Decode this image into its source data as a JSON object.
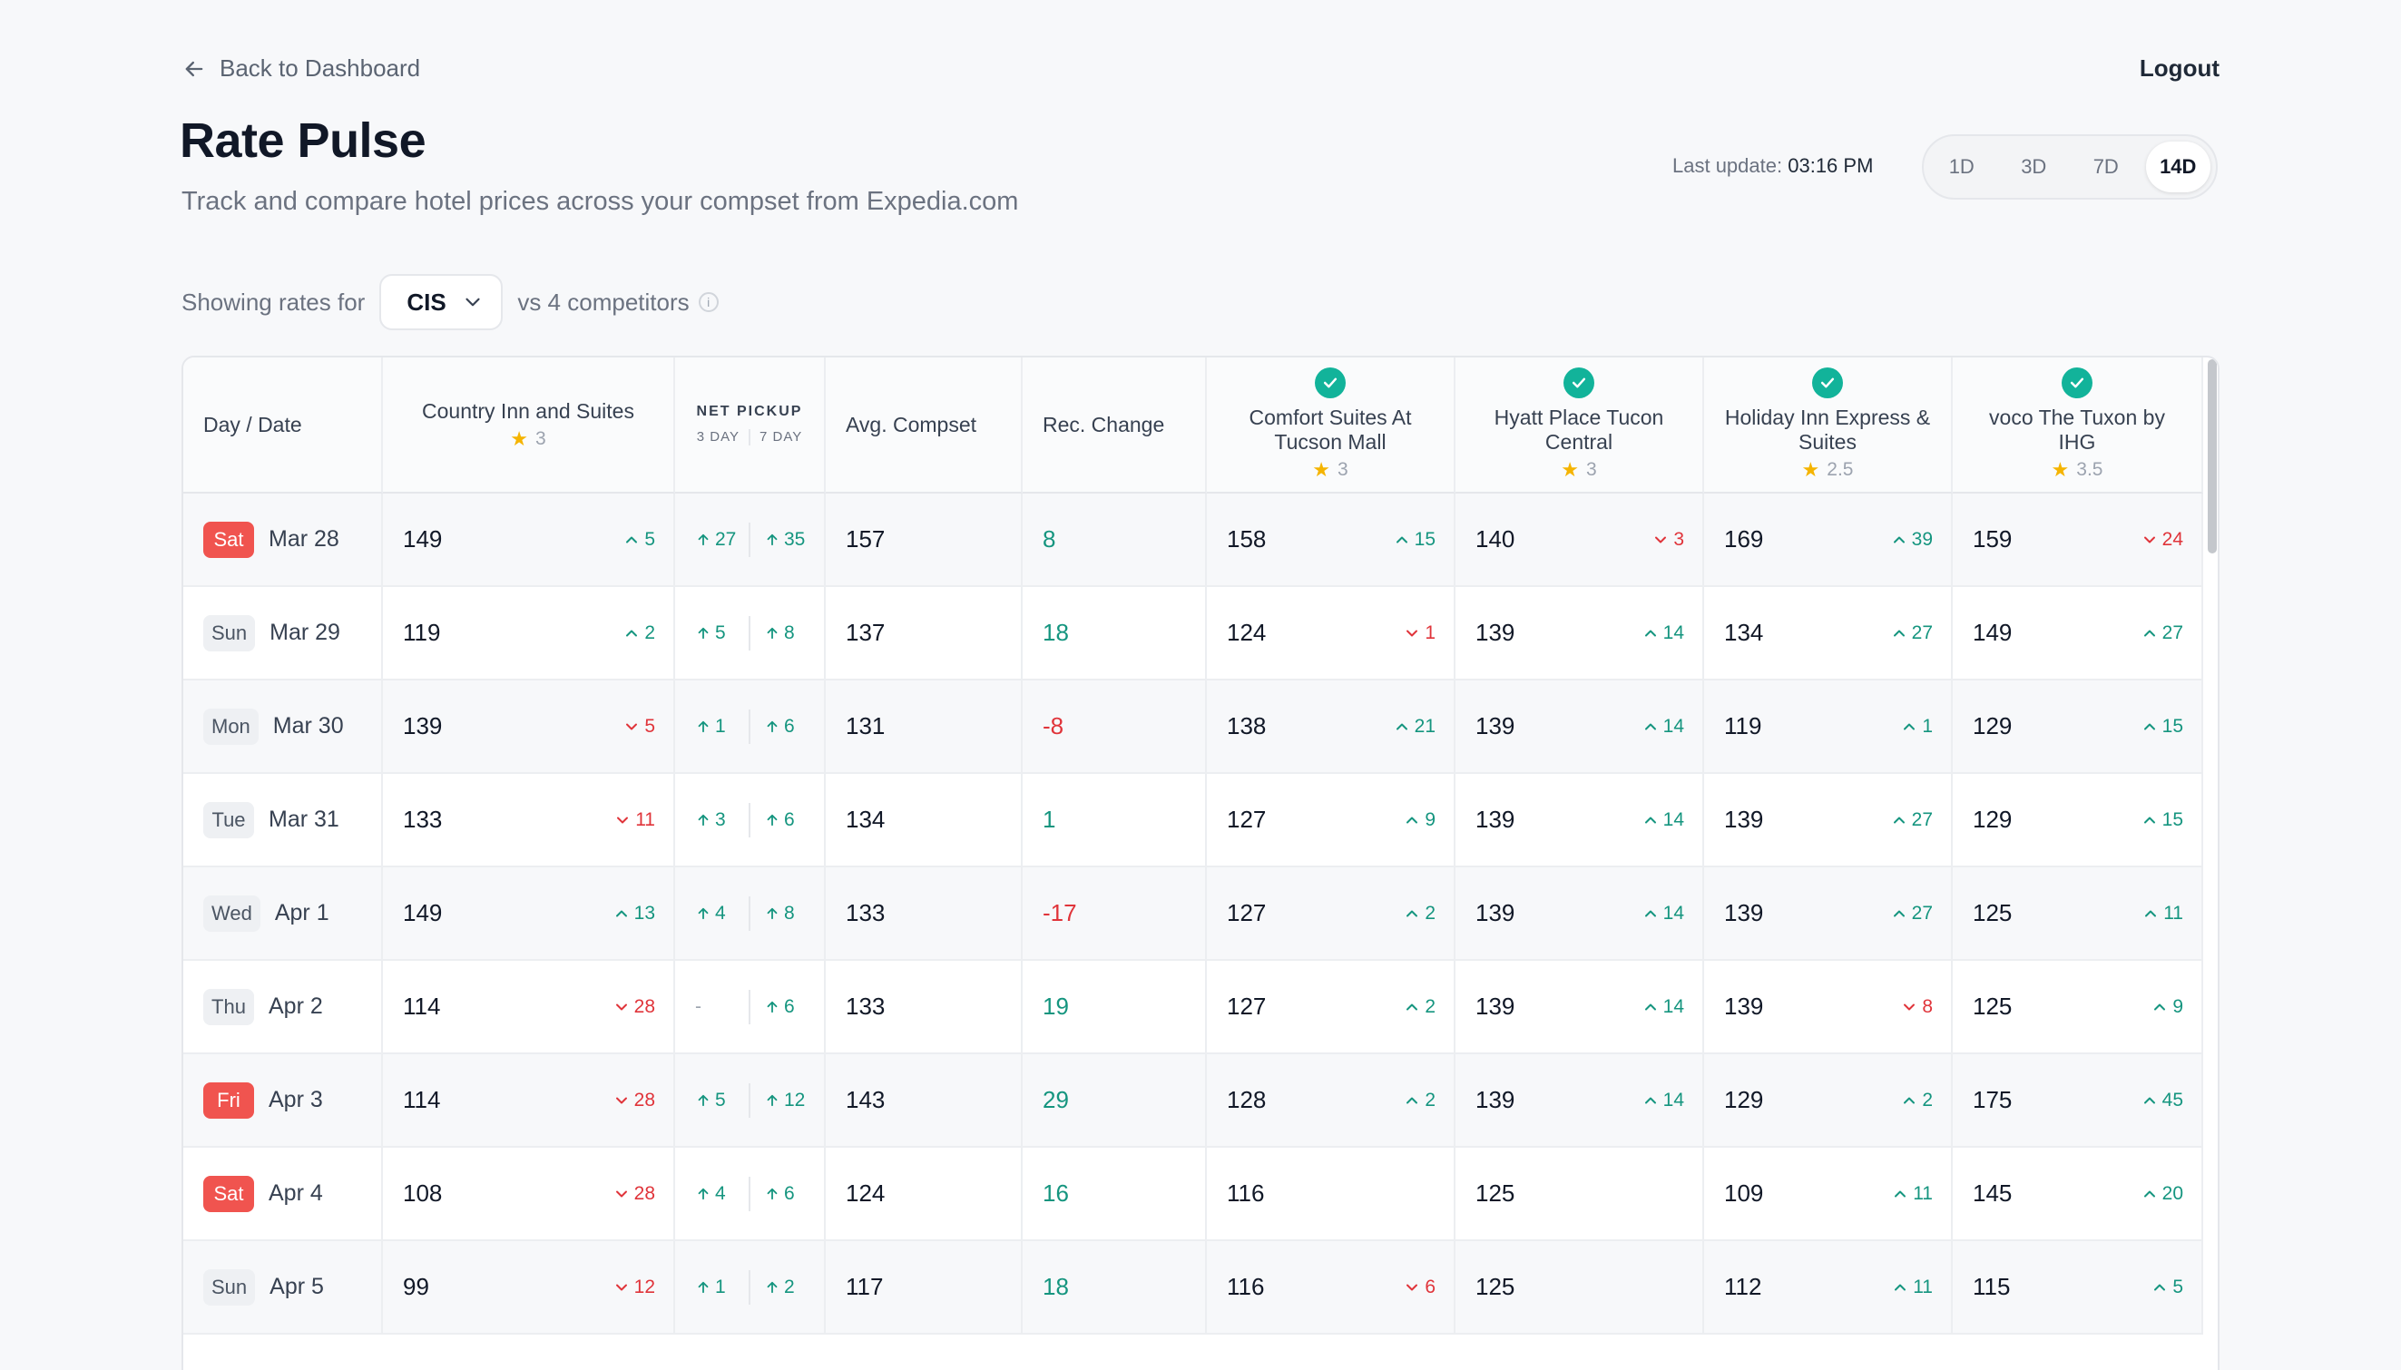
{
  "nav": {
    "back_label": "Back to Dashboard",
    "logout_label": "Logout"
  },
  "header": {
    "title": "Rate Pulse",
    "subtitle": "Track and compare hotel prices across your compset from Expedia.com",
    "last_update_label": "Last update:",
    "last_update_time": "03:16 PM",
    "ranges": [
      "1D",
      "3D",
      "7D",
      "14D"
    ],
    "active_range": "14D"
  },
  "filter": {
    "prefix": "Showing rates for",
    "selected": "CIS",
    "suffix": "vs 4 competitors",
    "info_glyph": "i"
  },
  "columns": {
    "day_date": "Day / Date",
    "own_hotel": {
      "name": "Country Inn and Suites",
      "rating": "3"
    },
    "net_pickup": {
      "title": "NET PICKUP",
      "sub_a": "3 DAY",
      "sub_b": "7 DAY"
    },
    "avg_compset": "Avg. Compset",
    "rec_change": "Rec. Change",
    "competitors": [
      {
        "name": "Comfort Suites At Tucson Mall",
        "rating": "3"
      },
      {
        "name": "Hyatt Place Tucon Central",
        "rating": "3"
      },
      {
        "name": "Holiday Inn Express & Suites",
        "rating": "2.5"
      },
      {
        "name": "voco The Tuxon by IHG",
        "rating": "3.5"
      }
    ]
  },
  "rows": [
    {
      "day": "Sat",
      "date": "Mar 28",
      "weekend": true,
      "own": {
        "v": "149",
        "d": "5",
        "dir": "up"
      },
      "p3": "27",
      "p7": "35",
      "avg": "157",
      "rec": "8",
      "rec_dir": "up",
      "comp": [
        {
          "v": "158",
          "d": "15",
          "dir": "up"
        },
        {
          "v": "140",
          "d": "3",
          "dir": "down"
        },
        {
          "v": "169",
          "d": "39",
          "dir": "up"
        },
        {
          "v": "159",
          "d": "24",
          "dir": "down"
        }
      ]
    },
    {
      "day": "Sun",
      "date": "Mar 29",
      "weekend": false,
      "own": {
        "v": "119",
        "d": "2",
        "dir": "up"
      },
      "p3": "5",
      "p7": "8",
      "avg": "137",
      "rec": "18",
      "rec_dir": "up",
      "comp": [
        {
          "v": "124",
          "d": "1",
          "dir": "down"
        },
        {
          "v": "139",
          "d": "14",
          "dir": "up"
        },
        {
          "v": "134",
          "d": "27",
          "dir": "up"
        },
        {
          "v": "149",
          "d": "27",
          "dir": "up"
        }
      ]
    },
    {
      "day": "Mon",
      "date": "Mar 30",
      "weekend": false,
      "own": {
        "v": "139",
        "d": "5",
        "dir": "down"
      },
      "p3": "1",
      "p7": "6",
      "avg": "131",
      "rec": "-8",
      "rec_dir": "down",
      "comp": [
        {
          "v": "138",
          "d": "21",
          "dir": "up"
        },
        {
          "v": "139",
          "d": "14",
          "dir": "up"
        },
        {
          "v": "119",
          "d": "1",
          "dir": "up"
        },
        {
          "v": "129",
          "d": "15",
          "dir": "up"
        }
      ]
    },
    {
      "day": "Tue",
      "date": "Mar 31",
      "weekend": false,
      "own": {
        "v": "133",
        "d": "11",
        "dir": "down"
      },
      "p3": "3",
      "p7": "6",
      "avg": "134",
      "rec": "1",
      "rec_dir": "up",
      "comp": [
        {
          "v": "127",
          "d": "9",
          "dir": "up"
        },
        {
          "v": "139",
          "d": "14",
          "dir": "up"
        },
        {
          "v": "139",
          "d": "27",
          "dir": "up"
        },
        {
          "v": "129",
          "d": "15",
          "dir": "up"
        }
      ]
    },
    {
      "day": "Wed",
      "date": "Apr 1",
      "weekend": false,
      "own": {
        "v": "149",
        "d": "13",
        "dir": "up"
      },
      "p3": "4",
      "p7": "8",
      "avg": "133",
      "rec": "-17",
      "rec_dir": "down",
      "comp": [
        {
          "v": "127",
          "d": "2",
          "dir": "up"
        },
        {
          "v": "139",
          "d": "14",
          "dir": "up"
        },
        {
          "v": "139",
          "d": "27",
          "dir": "up"
        },
        {
          "v": "125",
          "d": "11",
          "dir": "up"
        }
      ]
    },
    {
      "day": "Thu",
      "date": "Apr 2",
      "weekend": false,
      "own": {
        "v": "114",
        "d": "28",
        "dir": "down"
      },
      "p3": "-",
      "p7": "6",
      "avg": "133",
      "rec": "19",
      "rec_dir": "up",
      "comp": [
        {
          "v": "127",
          "d": "2",
          "dir": "up"
        },
        {
          "v": "139",
          "d": "14",
          "dir": "up"
        },
        {
          "v": "139",
          "d": "8",
          "dir": "down"
        },
        {
          "v": "125",
          "d": "9",
          "dir": "up"
        }
      ]
    },
    {
      "day": "Fri",
      "date": "Apr 3",
      "weekend": true,
      "own": {
        "v": "114",
        "d": "28",
        "dir": "down"
      },
      "p3": "5",
      "p7": "12",
      "avg": "143",
      "rec": "29",
      "rec_dir": "up",
      "comp": [
        {
          "v": "128",
          "d": "2",
          "dir": "up"
        },
        {
          "v": "139",
          "d": "14",
          "dir": "up"
        },
        {
          "v": "129",
          "d": "2",
          "dir": "up"
        },
        {
          "v": "175",
          "d": "45",
          "dir": "up"
        }
      ]
    },
    {
      "day": "Sat",
      "date": "Apr 4",
      "weekend": true,
      "own": {
        "v": "108",
        "d": "28",
        "dir": "down"
      },
      "p3": "4",
      "p7": "6",
      "avg": "124",
      "rec": "16",
      "rec_dir": "up",
      "comp": [
        {
          "v": "116",
          "d": "",
          "dir": ""
        },
        {
          "v": "125",
          "d": "",
          "dir": ""
        },
        {
          "v": "109",
          "d": "11",
          "dir": "up"
        },
        {
          "v": "145",
          "d": "20",
          "dir": "up"
        }
      ]
    },
    {
      "day": "Sun",
      "date": "Apr 5",
      "weekend": false,
      "own": {
        "v": "99",
        "d": "12",
        "dir": "down"
      },
      "p3": "1",
      "p7": "2",
      "avg": "117",
      "rec": "18",
      "rec_dir": "up",
      "comp": [
        {
          "v": "116",
          "d": "6",
          "dir": "down"
        },
        {
          "v": "125",
          "d": "",
          "dir": ""
        },
        {
          "v": "112",
          "d": "11",
          "dir": "up"
        },
        {
          "v": "115",
          "d": "5",
          "dir": "up"
        }
      ]
    }
  ]
}
